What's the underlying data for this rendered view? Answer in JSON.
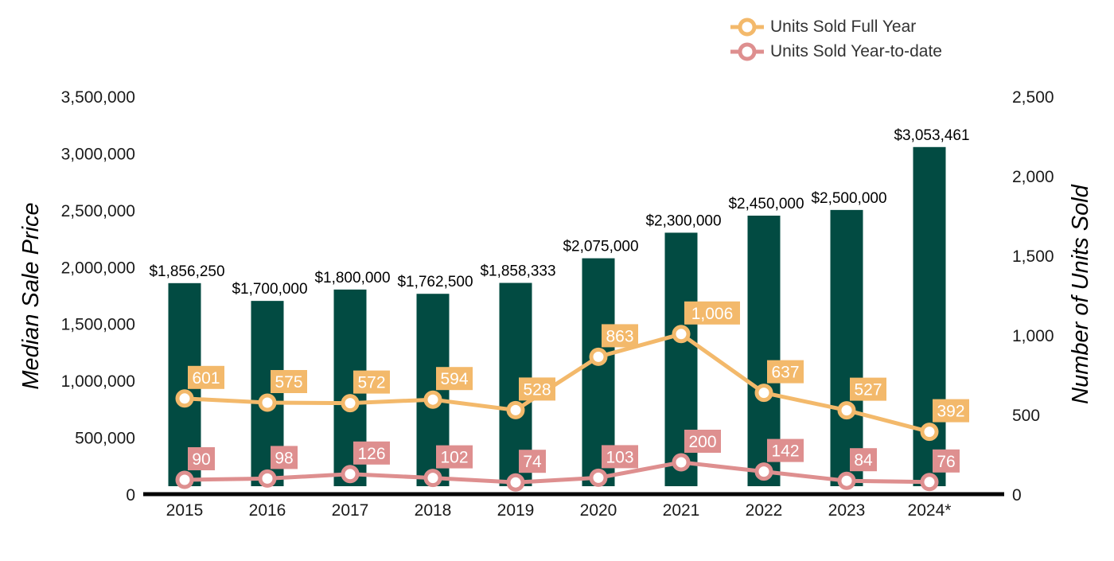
{
  "colors": {
    "bars": "#024b42",
    "full_year": "#f3b96b",
    "ytd": "#de8f8f",
    "axis": "#000000",
    "text": "#1a1a1a"
  },
  "legend": {
    "full_year": "Units Sold Full Year",
    "ytd": "Units Sold Year-to-date"
  },
  "chart_data": {
    "type": "bar",
    "title": "",
    "xlabel": "",
    "ylabel": "Median Sale Price",
    "y2label": "Number of Units Sold",
    "categories": [
      "2015",
      "2016",
      "2017",
      "2018",
      "2019",
      "2020",
      "2021",
      "2022",
      "2023",
      "2024*"
    ],
    "ylim": [
      0,
      3500000
    ],
    "y2lim": [
      0,
      2500
    ],
    "y_ticks": [
      "0",
      "500,000",
      "1,000,000",
      "1,500,000",
      "2,000,000",
      "2,500,000",
      "3,000,000",
      "3,500,000"
    ],
    "y2_ticks": [
      "0",
      "500",
      "1,000",
      "1,500",
      "2,000",
      "2,500"
    ],
    "grid": false,
    "legend_position": "top-right",
    "series": [
      {
        "name": "Median Sale Price",
        "type": "bar",
        "axis": "left",
        "values": [
          1856250,
          1700000,
          1800000,
          1762500,
          1858333,
          2075000,
          2300000,
          2450000,
          2500000,
          3053461
        ],
        "labels": [
          "$1,856,250",
          "$1,700,000",
          "$1,800,000",
          "$1,762,500",
          "$1,858,333",
          "$2,075,000",
          "$2,300,000",
          "$2,450,000",
          "$2,500,000",
          "$3,053,461"
        ]
      },
      {
        "name": "Units Sold Full Year",
        "type": "line",
        "axis": "right",
        "values": [
          601,
          575,
          572,
          594,
          528,
          863,
          1006,
          637,
          527,
          392
        ],
        "labels": [
          "601",
          "575",
          "572",
          "594",
          "528",
          "863",
          "1,006",
          "637",
          "527",
          "392"
        ]
      },
      {
        "name": "Units Sold Year-to-date",
        "type": "line",
        "axis": "right",
        "values": [
          90,
          98,
          126,
          102,
          74,
          103,
          200,
          142,
          84,
          76
        ],
        "labels": [
          "90",
          "98",
          "126",
          "102",
          "74",
          "103",
          "200",
          "142",
          "84",
          "76"
        ]
      }
    ]
  }
}
